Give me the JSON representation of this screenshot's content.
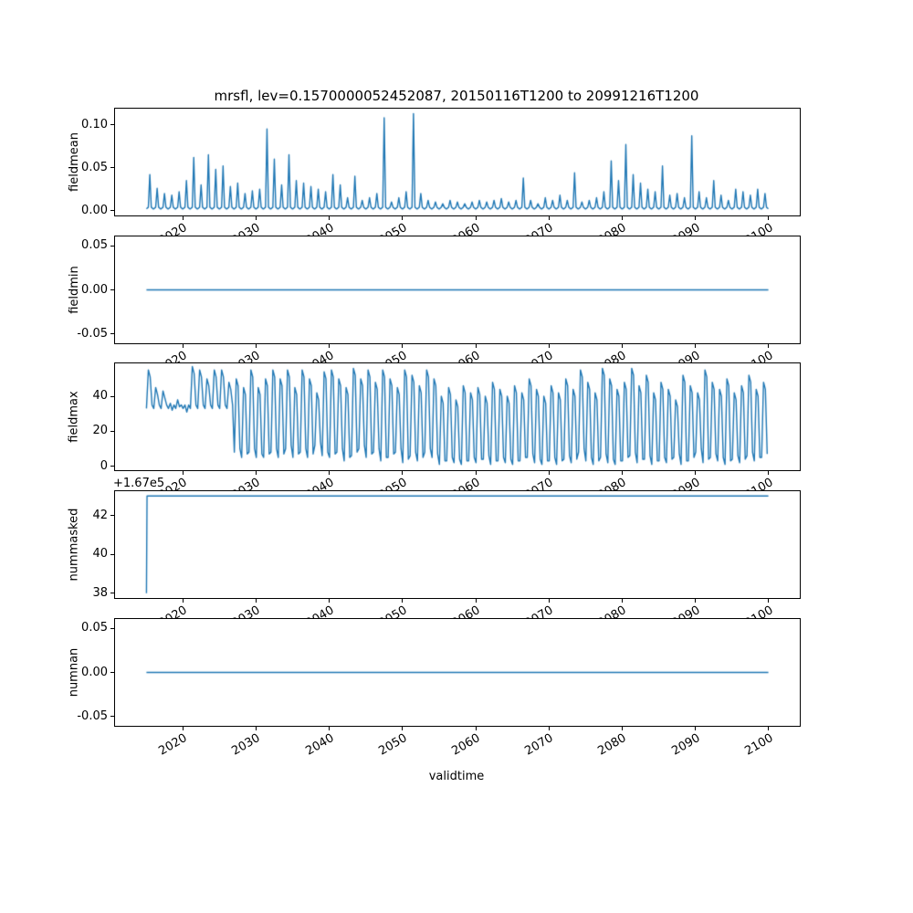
{
  "figure": {
    "background": "#ffffff"
  },
  "chart_data": {
    "type": "line",
    "title": "mrsfl, lev=0.1570000052452087, 20150116T1200 to 20991216T1200",
    "xlabel": "validtime",
    "line_color": "#1f77b4",
    "xlim": [
      2010.75,
      2104.25
    ],
    "x_ticks": [
      2020,
      2030,
      2040,
      2050,
      2060,
      2070,
      2080,
      2090,
      2100
    ],
    "x_tick_labels": [
      "2020",
      "2030",
      "2040",
      "2050",
      "2060",
      "2070",
      "2080",
      "2090",
      "2100"
    ],
    "panels": [
      {
        "ylabel": "fieldmean",
        "yticks": [
          0.0,
          0.05,
          0.1
        ],
        "ytick_labels": [
          "0.00",
          "0.05",
          "0.10"
        ],
        "ylim": [
          -0.0057,
          0.1187
        ],
        "series": {
          "kind": "annual_spikes",
          "year_start": 2015,
          "baseline": 0.002,
          "peaks": [
            0.042,
            0.026,
            0.02,
            0.018,
            0.022,
            0.035,
            0.062,
            0.03,
            0.065,
            0.048,
            0.052,
            0.028,
            0.032,
            0.02,
            0.023,
            0.025,
            0.095,
            0.06,
            0.03,
            0.065,
            0.035,
            0.032,
            0.028,
            0.025,
            0.022,
            0.042,
            0.03,
            0.015,
            0.04,
            0.012,
            0.015,
            0.02,
            0.108,
            0.01,
            0.015,
            0.022,
            0.113,
            0.02,
            0.012,
            0.01,
            0.008,
            0.012,
            0.01,
            0.008,
            0.01,
            0.012,
            0.01,
            0.012,
            0.014,
            0.01,
            0.012,
            0.038,
            0.012,
            0.008,
            0.015,
            0.012,
            0.018,
            0.012,
            0.044,
            0.01,
            0.012,
            0.015,
            0.022,
            0.058,
            0.035,
            0.077,
            0.042,
            0.032,
            0.025,
            0.022,
            0.052,
            0.018,
            0.02,
            0.015,
            0.087,
            0.022,
            0.015,
            0.035,
            0.018,
            0.012,
            0.025,
            0.022,
            0.018,
            0.025,
            0.02
          ]
        }
      },
      {
        "ylabel": "fieldmin",
        "yticks": [
          -0.05,
          0.0,
          0.05
        ],
        "ytick_labels": [
          "-0.05",
          "0.00",
          "0.05"
        ],
        "ylim": [
          -0.0605,
          0.0605
        ],
        "series": {
          "kind": "constant",
          "value": 0.0,
          "x_start": 2015.04,
          "x_end": 2099.96
        }
      },
      {
        "ylabel": "fieldmax",
        "yticks": [
          0,
          20,
          40
        ],
        "ytick_labels": [
          "0",
          "20",
          "40"
        ],
        "ylim": [
          -2.3,
          58.8
        ],
        "series": {
          "kind": "annual_oscillation",
          "year_start": 2015,
          "valleys": [
            33,
            33,
            33,
            33,
            33,
            33,
            33,
            33,
            33,
            33,
            33,
            33,
            8,
            5,
            8,
            5,
            5,
            8,
            5,
            10,
            5,
            8,
            5,
            12,
            6,
            5,
            8,
            3,
            6,
            10,
            5,
            8,
            3,
            5,
            8,
            2,
            6,
            3,
            8,
            5,
            1,
            3,
            2,
            1,
            3,
            2,
            4,
            1,
            3,
            2,
            1,
            3,
            5,
            2,
            1,
            3,
            1,
            4,
            2,
            8,
            3,
            1,
            5,
            2,
            1,
            3,
            6,
            2,
            4,
            1,
            3,
            2,
            5,
            1,
            3,
            8,
            2,
            5,
            3,
            1,
            4,
            2,
            6,
            3,
            5
          ],
          "peaks": [
            55,
            45,
            43,
            36,
            38,
            35,
            57,
            55,
            50,
            55,
            55,
            48,
            50,
            45,
            55,
            45,
            50,
            55,
            50,
            55,
            45,
            55,
            50,
            42,
            54,
            55,
            50,
            45,
            56,
            50,
            55,
            48,
            55,
            50,
            45,
            55,
            52,
            46,
            55,
            50,
            40,
            45,
            38,
            46,
            42,
            45,
            40,
            48,
            44,
            40,
            46,
            42,
            50,
            44,
            40,
            46,
            42,
            50,
            44,
            55,
            48,
            42,
            56,
            50,
            44,
            48,
            56,
            46,
            52,
            42,
            48,
            44,
            38,
            52,
            46,
            42,
            55,
            48,
            44,
            50,
            42,
            46,
            52,
            44,
            48
          ]
        }
      },
      {
        "ylabel": "nummasked",
        "offset_text": "+1.67e5",
        "yticks": [
          167038,
          167040,
          167042
        ],
        "ytick_labels": [
          "38",
          "40",
          "42"
        ],
        "ylim": [
          167037.75,
          167043.25
        ],
        "series": {
          "kind": "points",
          "x": [
            2015.04,
            2015.12,
            2099.96
          ],
          "y": [
            167038,
            167043,
            167043
          ]
        }
      },
      {
        "ylabel": "numnan",
        "yticks": [
          -0.05,
          0.0,
          0.05
        ],
        "ytick_labels": [
          "-0.05",
          "0.00",
          "0.05"
        ],
        "ylim": [
          -0.0605,
          0.0605
        ],
        "series": {
          "kind": "constant",
          "value": 0.0,
          "x_start": 2015.04,
          "x_end": 2099.96
        }
      }
    ]
  }
}
